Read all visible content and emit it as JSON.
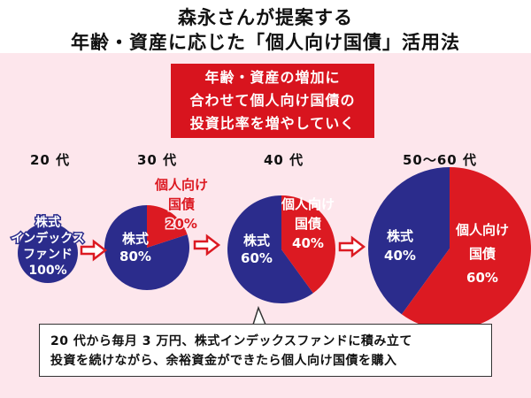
{
  "header": {
    "title_line1": "森永さんが提案する",
    "title_line2": "年齢・資産に応じた「個人向け国債」活用法"
  },
  "callout": {
    "line1": "年齢・資産の増加に",
    "line2": "合わせて個人向け国債の",
    "line3": "投資比率を増やしていく"
  },
  "footer": {
    "line1": "20 代から毎月 3 万円、株式インデックスファンドに積み立て",
    "line2": "投資を続けながら、余裕資金ができたら個人向け国債を購入"
  },
  "colors": {
    "stock": "#2b2c8c",
    "bond": "#dc1a22",
    "arrow": "#dc1a22",
    "background": "#fde6ec"
  },
  "chart_data": {
    "type": "pie",
    "charts": [
      {
        "age": "20 代",
        "slices": [
          {
            "name": "株式インデックスファンド",
            "value": 100
          }
        ],
        "labels": {
          "stock": [
            "株式",
            "インデックス",
            "ファンド",
            "100%"
          ],
          "bond": []
        }
      },
      {
        "age": "30 代",
        "slices": [
          {
            "name": "株式",
            "value": 80
          },
          {
            "name": "個人向け国債",
            "value": 20
          }
        ],
        "labels": {
          "stock": [
            "株式",
            "80%"
          ],
          "bond": [
            "個人向け",
            "国債",
            "20%"
          ]
        }
      },
      {
        "age": "40 代",
        "slices": [
          {
            "name": "株式",
            "value": 60
          },
          {
            "name": "個人向け国債",
            "value": 40
          }
        ],
        "labels": {
          "stock": [
            "株式",
            "60%"
          ],
          "bond": [
            "個人向け",
            "国債",
            "40%"
          ]
        }
      },
      {
        "age": "50〜60 代",
        "slices": [
          {
            "name": "株式",
            "value": 40
          },
          {
            "name": "個人向け国債",
            "value": 60
          }
        ],
        "labels": {
          "stock": [
            "株式",
            "40%"
          ],
          "bond": [
            "個人向け",
            "国債",
            "60%"
          ]
        }
      }
    ]
  }
}
